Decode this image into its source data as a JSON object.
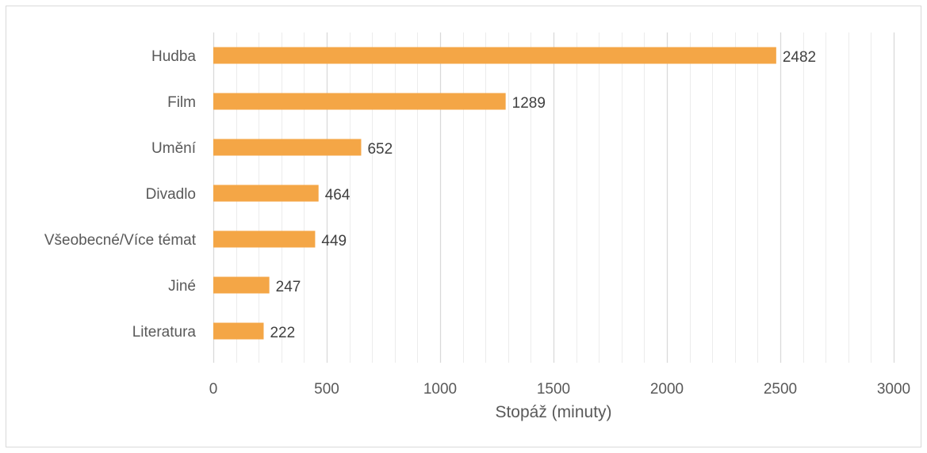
{
  "chart_data": {
    "type": "bar",
    "orientation": "horizontal",
    "categories": [
      "Hudba",
      "Film",
      "Umění",
      "Divadlo",
      "Všeobecné/Více témat",
      "Jiné",
      "Literatura"
    ],
    "values": [
      2482,
      1289,
      652,
      464,
      449,
      247,
      222
    ],
    "title": "",
    "xlabel": "Stopáž (minuty)",
    "ylabel": "",
    "xlim": [
      0,
      3000
    ],
    "x_ticks": [
      "0",
      "500",
      "1000",
      "1500",
      "2000",
      "2500",
      "3000"
    ],
    "x_tick_values": [
      0,
      500,
      1000,
      1500,
      2000,
      2500,
      3000
    ],
    "minor_step": 100,
    "grid": true,
    "data_labels": true,
    "legend": "none",
    "colors": {
      "bar": "#F4A646",
      "grid_major": "#d9d9d9",
      "grid_minor": "#ececec",
      "text": "#595959",
      "frame": "#d9d9d9"
    }
  }
}
